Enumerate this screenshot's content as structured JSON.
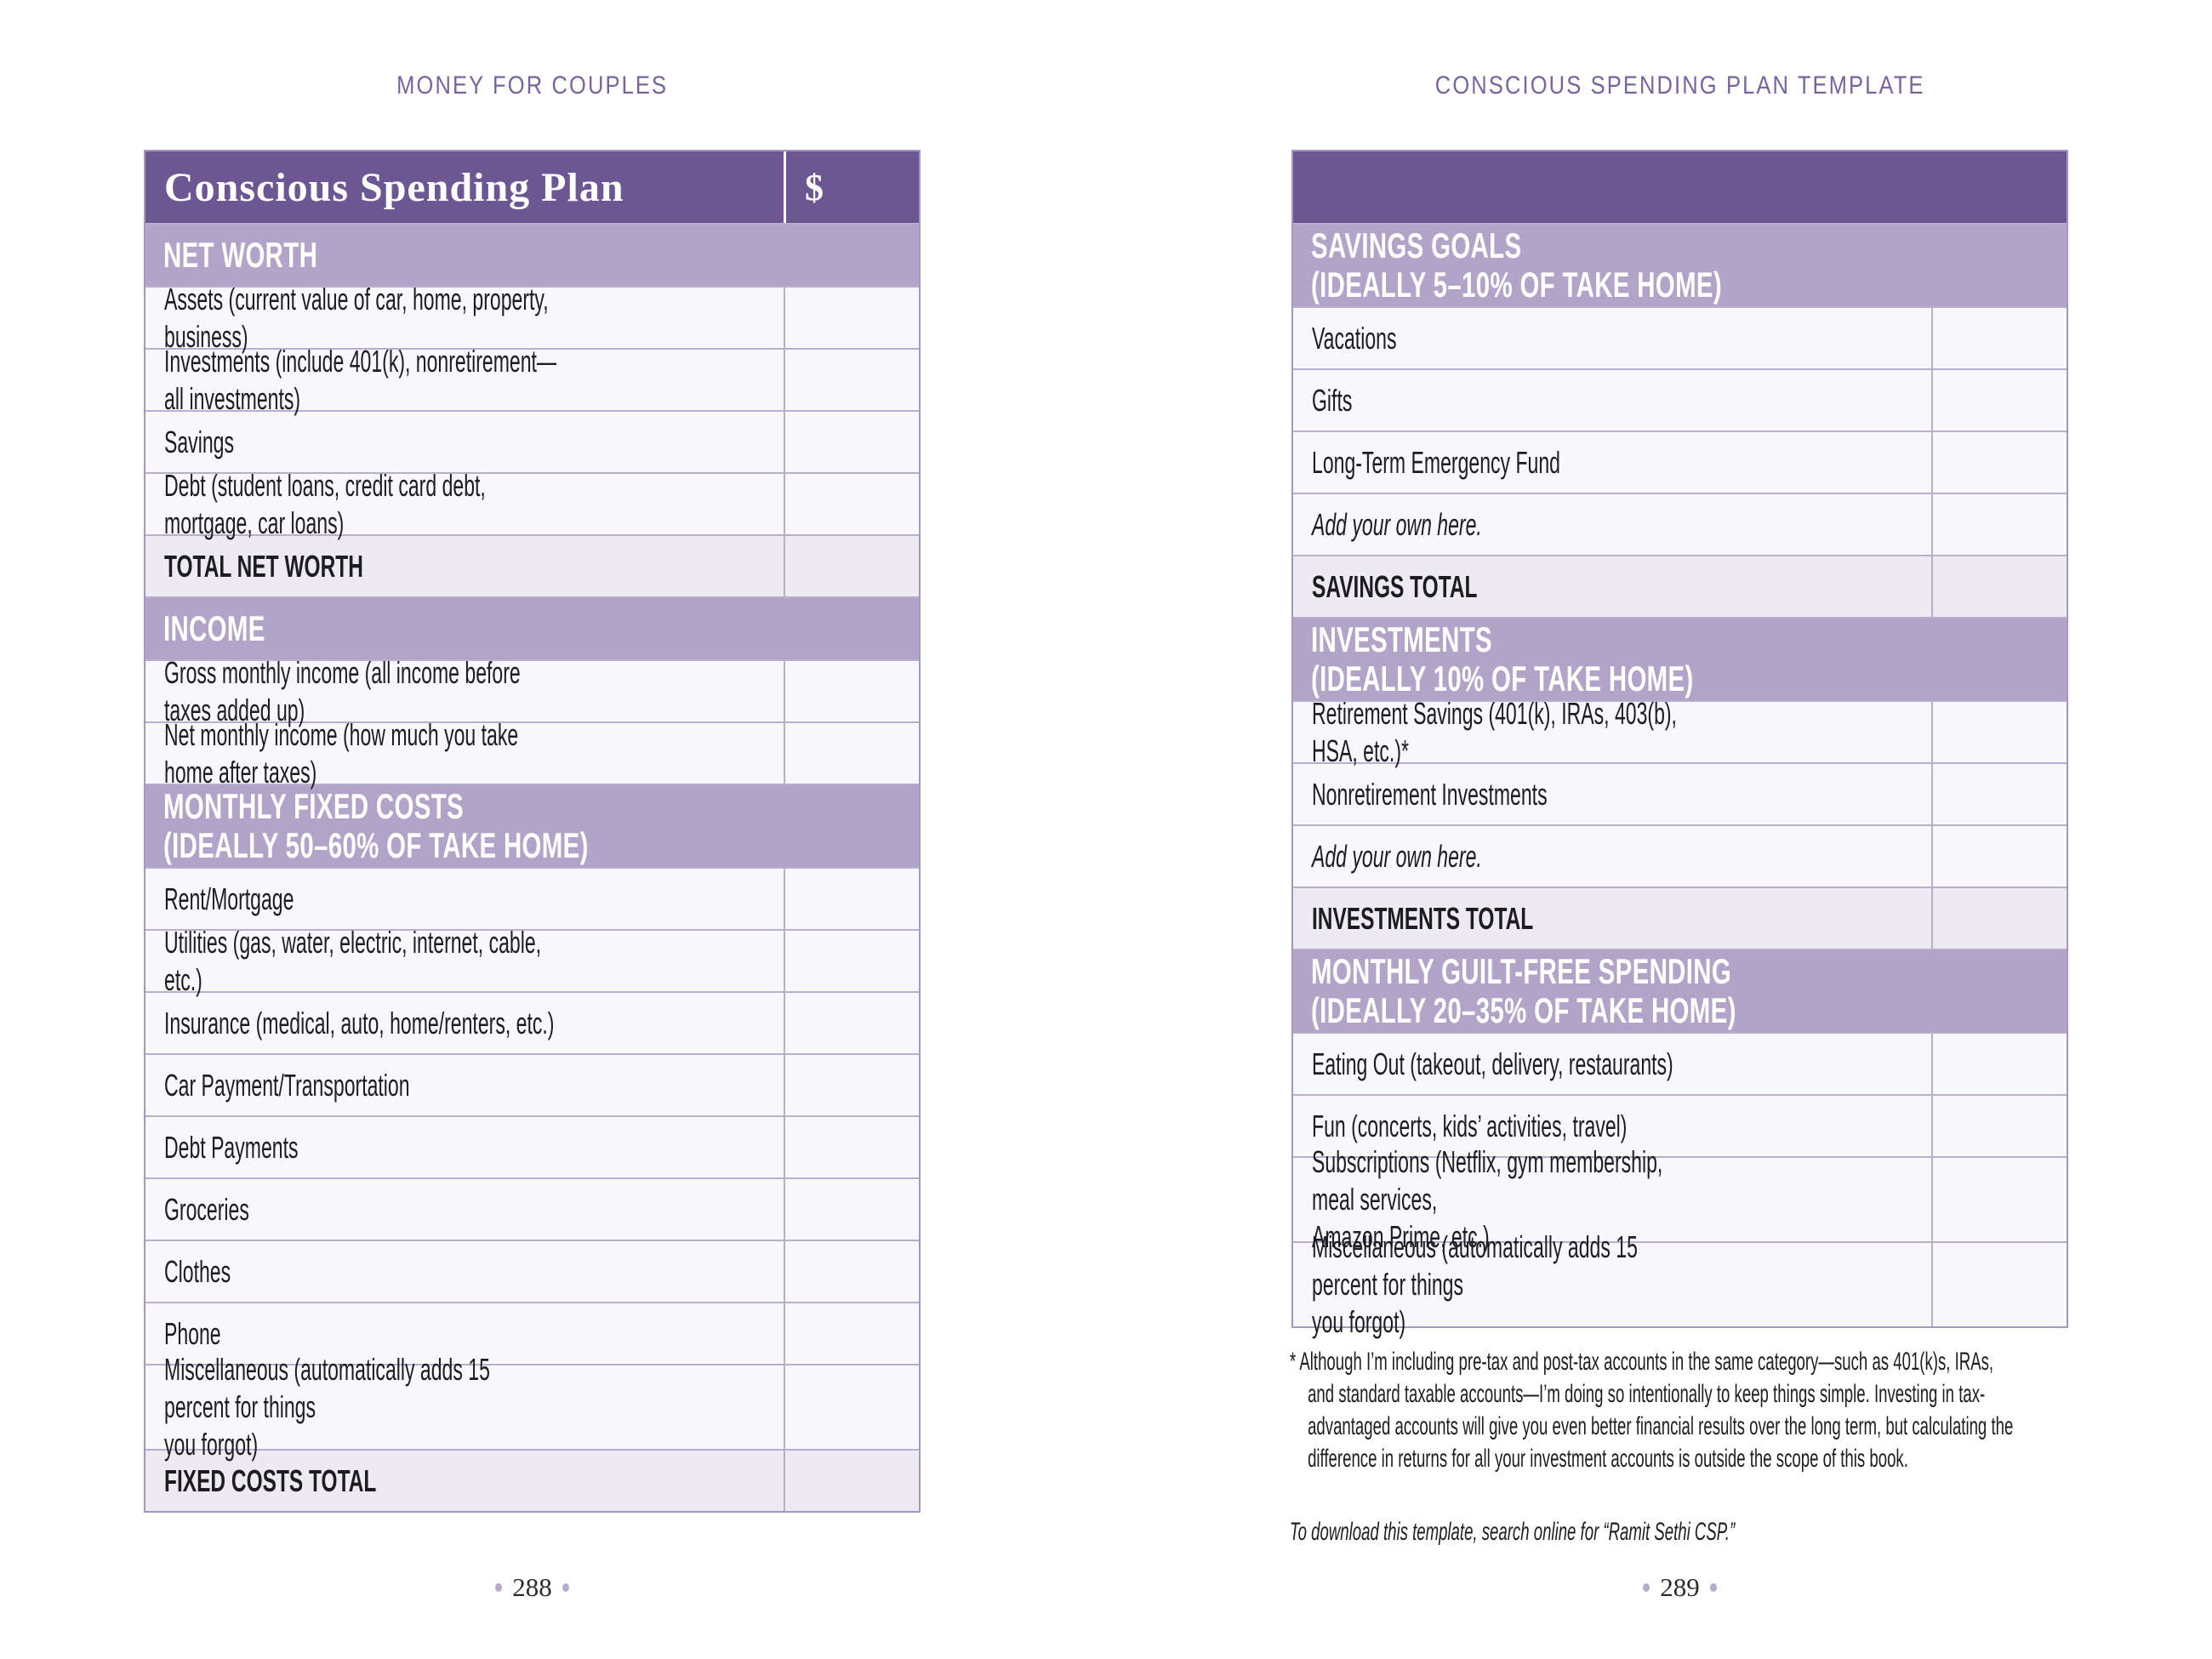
{
  "colors": {
    "header_purple": "#6c5793",
    "section_band_purple": "#b2a4c8",
    "row_background": "#f8f7fa",
    "total_row_background": "#edeaf1",
    "grid_line": "#b9add0",
    "running_head_purple": "#79629f"
  },
  "left": {
    "running_head": "MONEY FOR COUPLES",
    "header": {
      "title": "Conscious Spending Plan",
      "dollar": "$"
    },
    "net_worth": {
      "heading": "NET WORTH",
      "rows": [
        "Assets (current value of car, home, property, business)",
        "Investments (include 401(k), nonretirement—all investments)",
        "Savings",
        "Debt (student loans, credit card debt, mortgage, car loans)"
      ],
      "total_label": "TOTAL NET WORTH"
    },
    "income": {
      "heading": "INCOME",
      "rows": [
        "Gross monthly income (all income before taxes added up)",
        "Net monthly income (how much you take home after taxes)"
      ]
    },
    "fixed_costs": {
      "heading": "MONTHLY FIXED COSTS\n(IDEALLY 50–60% OF TAKE HOME)",
      "rows": [
        "Rent/Mortgage",
        "Utilities (gas, water, electric, internet, cable, etc.)",
        "Insurance (medical, auto, home/renters, etc.)",
        "Car Payment/Transportation",
        "Debt Payments",
        "Groceries",
        "Clothes",
        "Phone",
        "Miscellaneous (automatically adds 15 percent for things\nyou forgot)"
      ],
      "total_label": "FIXED COSTS TOTAL"
    },
    "page_number": "288"
  },
  "right": {
    "running_head": "CONSCIOUS SPENDING PLAN TEMPLATE",
    "savings": {
      "heading": "SAVINGS GOALS\n(IDEALLY 5–10% OF TAKE HOME)",
      "rows": [
        "Vacations",
        "Gifts",
        "Long-Term Emergency Fund",
        "Add your own here."
      ],
      "total_label": "SAVINGS TOTAL"
    },
    "investments": {
      "heading": "INVESTMENTS\n(IDEALLY 10% OF TAKE HOME)",
      "rows": [
        "Retirement Savings (401(k), IRAs, 403(b), HSA, etc.)*",
        "Nonretirement Investments",
        "Add your own here."
      ],
      "total_label": "INVESTMENTS TOTAL"
    },
    "guilt_free": {
      "heading": "MONTHLY GUILT-FREE SPENDING\n(IDEALLY 20–35% OF TAKE HOME)",
      "rows": [
        "Eating Out (takeout, delivery, restaurants)",
        "Fun (concerts, kids’ activities, travel)",
        "Subscriptions (Netflix, gym membership, meal services,\nAmazon Prime, etc.)",
        "Miscellaneous (automatically adds 15 percent for things\nyou forgot)"
      ]
    },
    "footnote": "* Although I’m including pre-tax and post-tax accounts in the same category—such as 401(k)s, IRAs, and standard taxable accounts—I’m doing so intentionally to keep things simple. Investing in tax-advantaged accounts will give you even better financial results over the long term, but calculating the difference in returns for all your investment accounts is outside the scope of this book.",
    "download_note": "To download this template, search online for “Ramit Sethi CSP.”",
    "page_number": "289"
  }
}
